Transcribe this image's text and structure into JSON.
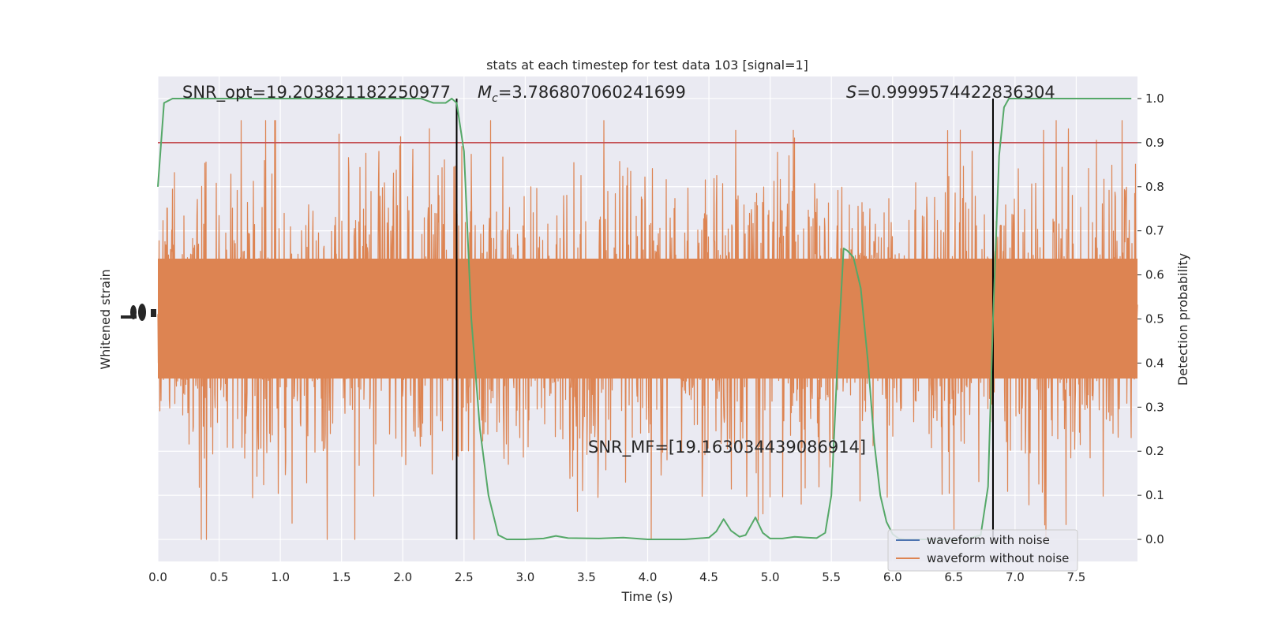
{
  "chart_data": {
    "type": "line",
    "title": "stats at each timestep for test data 103 [signal=1]",
    "xlabel": "Time (s)",
    "ylabel_left": "Whitened strain",
    "ylabel_right": "Detection probability",
    "xlim": [
      0,
      8
    ],
    "ylim_right": [
      -0.05,
      1.05
    ],
    "x_ticks": [
      "0.0",
      "0.5",
      "1.0",
      "1.5",
      "2.0",
      "2.5",
      "3.0",
      "3.5",
      "4.0",
      "4.5",
      "5.0",
      "5.5",
      "6.0",
      "6.5",
      "7.0",
      "7.5"
    ],
    "y_ticks_right": [
      "0.0",
      "0.1",
      "0.2",
      "0.3",
      "0.4",
      "0.5",
      "0.6",
      "0.7",
      "0.8",
      "0.9",
      "1.0"
    ],
    "grid": true,
    "legend_position": "lower-right",
    "annotations": {
      "snr_opt": "SNR_opt=19.203821182250977",
      "mc_symbol": "M",
      "mc_subscript": "c",
      "mc_value": "=3.786807060241699",
      "s_symbol": "S",
      "s_value": "=0.9999574422836304",
      "snr_mf": "SNR_MF=[19.163034439086914]"
    },
    "threshold": 0.9,
    "vertical_lines_x": [
      2.44,
      6.82
    ],
    "series": [
      {
        "name": "waveform with noise",
        "color": "#4c72b0",
        "style": "line"
      },
      {
        "name": "waveform without noise",
        "color": "#dd8452",
        "style": "dense-noise"
      },
      {
        "color": "#55a868",
        "x": [
          0.0,
          0.05,
          0.12,
          0.2,
          0.4,
          0.8,
          1.2,
          1.6,
          2.0,
          2.15,
          2.25,
          2.35,
          2.4,
          2.44,
          2.5,
          2.56,
          2.63,
          2.7,
          2.78,
          2.85,
          3.0,
          3.15,
          3.25,
          3.35,
          3.6,
          3.8,
          4.0,
          4.3,
          4.5,
          4.56,
          4.62,
          4.68,
          4.75,
          4.8,
          4.88,
          4.94,
          5.0,
          5.1,
          5.2,
          5.3,
          5.38,
          5.45,
          5.5,
          5.55,
          5.6,
          5.63,
          5.68,
          5.74,
          5.8,
          5.85,
          5.9,
          5.95,
          6.0,
          6.05,
          6.1,
          6.2,
          6.4,
          6.6,
          6.72,
          6.78,
          6.82,
          6.87,
          6.91,
          6.95,
          7.0,
          7.2,
          7.5,
          7.95
        ],
        "y": [
          0.8,
          0.99,
          1.0,
          1.0,
          1.0,
          1.0,
          1.0,
          1.0,
          1.0,
          1.0,
          0.99,
          0.99,
          1.0,
          0.99,
          0.88,
          0.5,
          0.25,
          0.1,
          0.01,
          0.0,
          0.0,
          0.002,
          0.008,
          0.003,
          0.002,
          0.004,
          0.0,
          0.0,
          0.004,
          0.018,
          0.046,
          0.02,
          0.006,
          0.01,
          0.05,
          0.015,
          0.002,
          0.002,
          0.006,
          0.004,
          0.003,
          0.015,
          0.1,
          0.4,
          0.66,
          0.655,
          0.64,
          0.57,
          0.4,
          0.22,
          0.1,
          0.04,
          0.012,
          0.002,
          0.0,
          0.0,
          0.0,
          0.0,
          0.01,
          0.12,
          0.5,
          0.87,
          0.98,
          1.0,
          1.0,
          1.0,
          1.0,
          1.0
        ]
      }
    ]
  }
}
